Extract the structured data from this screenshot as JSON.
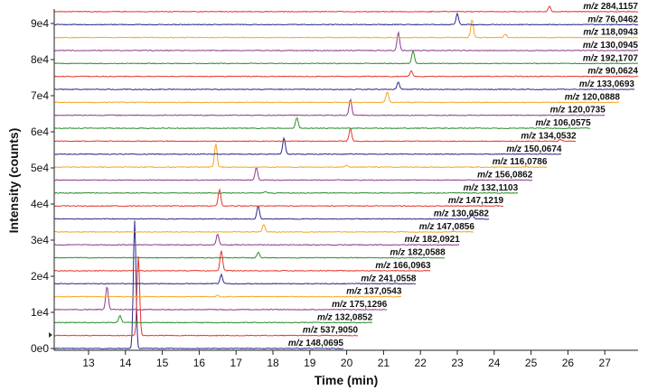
{
  "chart_data": {
    "type": "line",
    "subtype": "stacked extracted ion chromatograms",
    "xlabel": "Time (min)",
    "ylabel": "Intensity (counts)",
    "xlim": [
      12.0,
      28.0
    ],
    "xticks": [
      "13",
      "14",
      "15",
      "16",
      "17",
      "18",
      "19",
      "20",
      "21",
      "22",
      "23",
      "24",
      "25",
      "26",
      "27"
    ],
    "yticks": [
      "0e0",
      "1e4",
      "2e4",
      "3e4",
      "4e4",
      "5e4",
      "6e4",
      "7e4",
      "8e4",
      "9e4"
    ],
    "label_prefix": "m/z",
    "colors": {
      "red": "#e8352b",
      "purple": "#8e3a8e",
      "green": "#2e8b2e",
      "orange": "#f5a623",
      "navy": "#2a2a8c"
    },
    "series": [
      {
        "name": "148,0695",
        "color": "navy",
        "peaks": [
          {
            "x": 14.25,
            "y": 3.55
          }
        ]
      },
      {
        "name": "537,9050",
        "color": "red",
        "peaks": [
          {
            "x": 14.35,
            "y": 2.2
          }
        ]
      },
      {
        "name": "132,0852",
        "color": "green",
        "peaks": [
          {
            "x": 13.85,
            "y": 0.2
          }
        ]
      },
      {
        "name": "175,1296",
        "color": "purple",
        "peaks": [
          {
            "x": 13.5,
            "y": 0.65
          }
        ]
      },
      {
        "name": "137,0543",
        "color": "orange",
        "peaks": [
          {
            "x": 16.5,
            "y": 0.05
          }
        ]
      },
      {
        "name": "241,0558",
        "color": "navy",
        "peaks": [
          {
            "x": 16.6,
            "y": 0.25
          }
        ]
      },
      {
        "name": "166,0963",
        "color": "red",
        "peaks": [
          {
            "x": 16.6,
            "y": 0.55
          }
        ]
      },
      {
        "name": "182,0588",
        "color": "green",
        "peaks": [
          {
            "x": 17.6,
            "y": 0.15
          }
        ]
      },
      {
        "name": "182,0921",
        "color": "purple",
        "peaks": [
          {
            "x": 16.5,
            "y": 0.3
          }
        ]
      },
      {
        "name": "147,0856",
        "color": "orange",
        "peaks": [
          {
            "x": 17.75,
            "y": 0.2
          }
        ]
      },
      {
        "name": "130,0582",
        "color": "navy",
        "peaks": [
          {
            "x": 17.6,
            "y": 0.35
          },
          {
            "x": 23.4,
            "y": 0.15
          }
        ]
      },
      {
        "name": "147,1219",
        "color": "red",
        "peaks": [
          {
            "x": 16.55,
            "y": 0.45
          }
        ]
      },
      {
        "name": "132,1103",
        "color": "green",
        "peaks": [
          {
            "x": 17.8,
            "y": 0.05
          }
        ]
      },
      {
        "name": "156,0862",
        "color": "purple",
        "peaks": [
          {
            "x": 17.55,
            "y": 0.35
          }
        ]
      },
      {
        "name": "116,0786",
        "color": "orange",
        "peaks": [
          {
            "x": 16.45,
            "y": 0.65
          },
          {
            "x": 20.0,
            "y": 0.05
          }
        ]
      },
      {
        "name": "150,0674",
        "color": "navy",
        "peaks": [
          {
            "x": 18.3,
            "y": 0.45
          }
        ]
      },
      {
        "name": "134,0532",
        "color": "red",
        "peaks": [
          {
            "x": 20.1,
            "y": 0.35
          },
          {
            "x": 25.8,
            "y": 0.05
          }
        ]
      },
      {
        "name": "106,0575",
        "color": "green",
        "peaks": [
          {
            "x": 18.65,
            "y": 0.3
          }
        ]
      },
      {
        "name": "120,0735",
        "color": "purple",
        "peaks": [
          {
            "x": 20.1,
            "y": 0.45
          }
        ]
      },
      {
        "name": "120,0888",
        "color": "orange",
        "peaks": [
          {
            "x": 21.1,
            "y": 0.3
          }
        ]
      },
      {
        "name": "133,0693",
        "color": "navy",
        "peaks": [
          {
            "x": 21.4,
            "y": 0.2
          }
        ]
      },
      {
        "name": "90,0624",
        "color": "red",
        "peaks": [
          {
            "x": 21.75,
            "y": 0.15
          }
        ]
      },
      {
        "name": "192,1707",
        "color": "green",
        "peaks": [
          {
            "x": 21.8,
            "y": 0.35
          }
        ]
      },
      {
        "name": "130,0945",
        "color": "purple",
        "peaks": [
          {
            "x": 21.4,
            "y": 0.5
          }
        ]
      },
      {
        "name": "118,0943",
        "color": "orange",
        "peaks": [
          {
            "x": 23.4,
            "y": 0.5
          },
          {
            "x": 24.3,
            "y": 0.1
          }
        ]
      },
      {
        "name": "76,0462",
        "color": "navy",
        "peaks": [
          {
            "x": 23.0,
            "y": 0.3
          }
        ]
      },
      {
        "name": "284,1157",
        "color": "red",
        "peaks": [
          {
            "x": 25.5,
            "y": 0.15
          }
        ]
      }
    ]
  }
}
